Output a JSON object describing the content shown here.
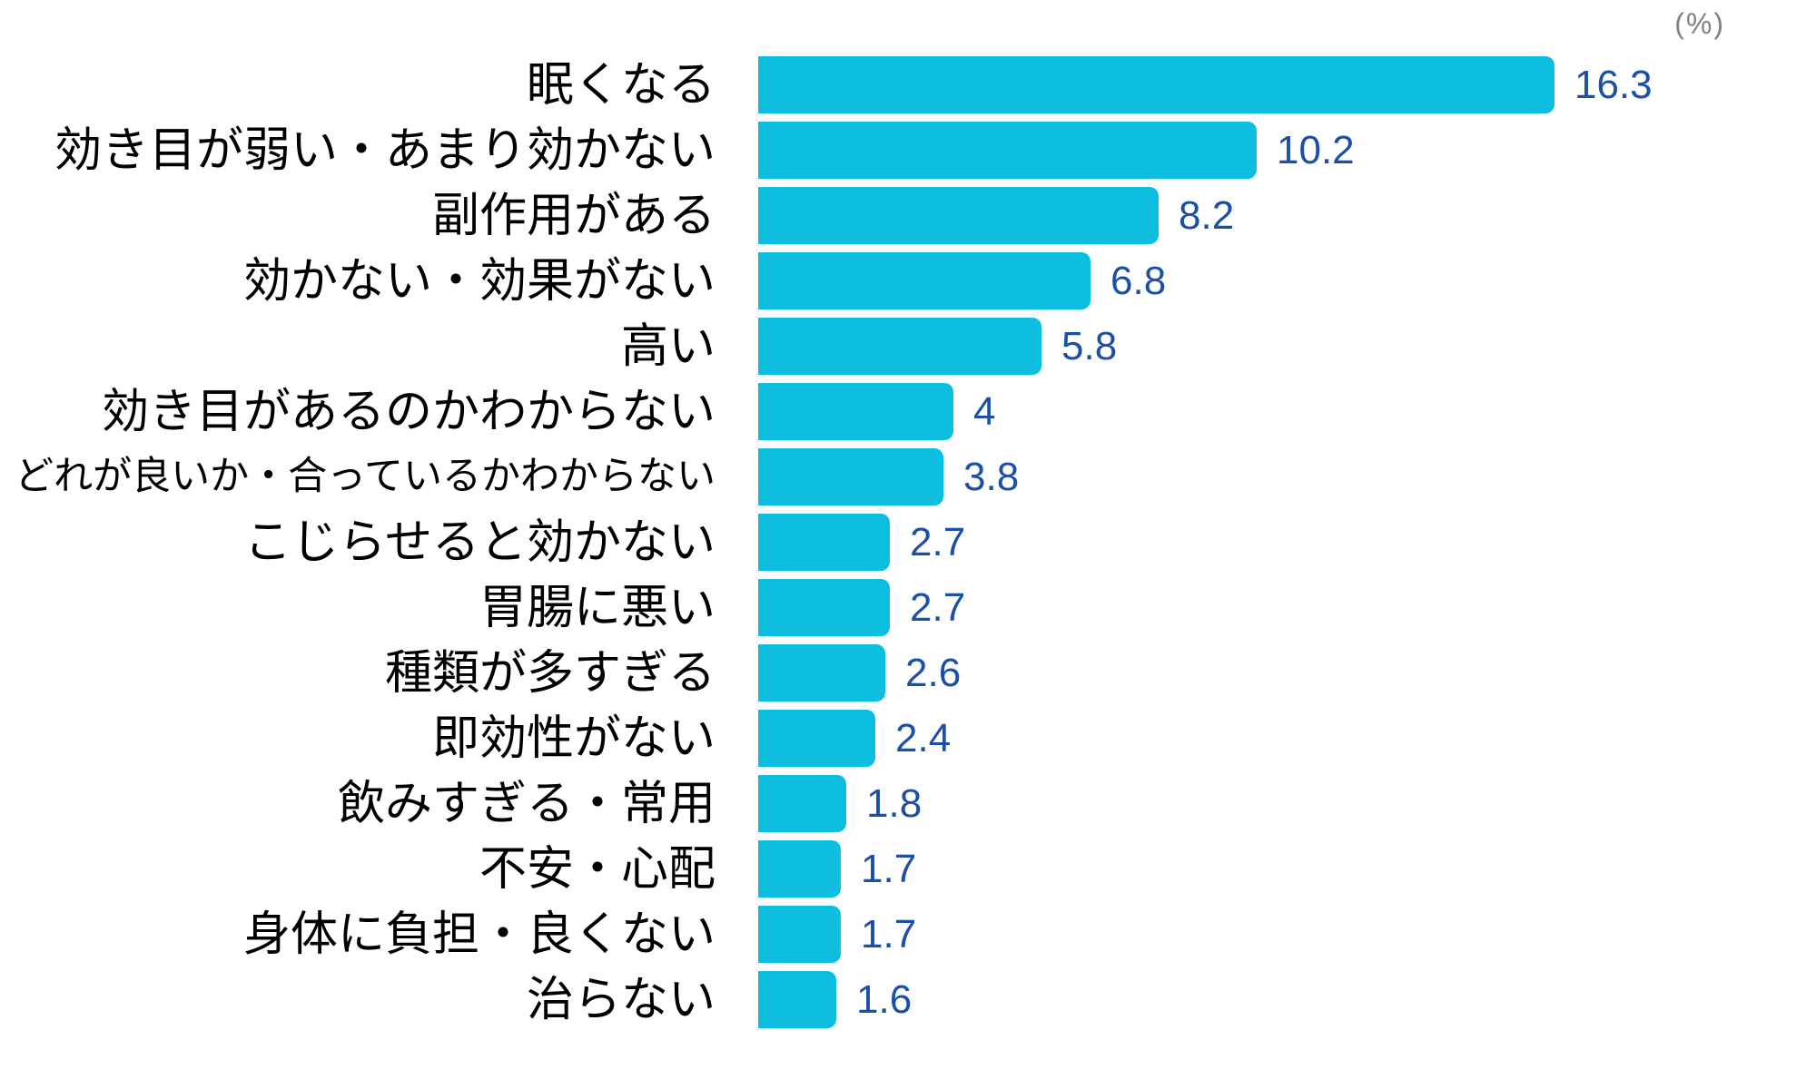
{
  "chart_data": {
    "type": "bar",
    "orientation": "horizontal",
    "title": "",
    "unit_label": "(%)",
    "categories": [
      "眠くなる",
      "効き目が弱い・あまり効かない",
      "副作用がある",
      "効かない・効果がない",
      "高い",
      "効き目があるのかわからない",
      "どれが良いか・合っているかわからない",
      "こじらせると効かない",
      "胃腸に悪い",
      "種類が多すぎる",
      "即効性がない",
      "飲みすぎる・常用",
      "不安・心配",
      "身体に負担・良くない",
      "治らない"
    ],
    "values": [
      16.3,
      10.2,
      8.2,
      6.8,
      5.8,
      4,
      3.8,
      2.7,
      2.7,
      2.6,
      2.4,
      1.8,
      1.7,
      1.7,
      1.6
    ],
    "xlim": [
      0,
      21.7
    ],
    "grid": false,
    "legend": false,
    "value_labels_shown": true,
    "colors": {
      "bar": "#0dbedf",
      "value_text": "#1b50a8",
      "category_text": "#000000",
      "unit_text": "#808080",
      "background": "#ffffff"
    }
  }
}
